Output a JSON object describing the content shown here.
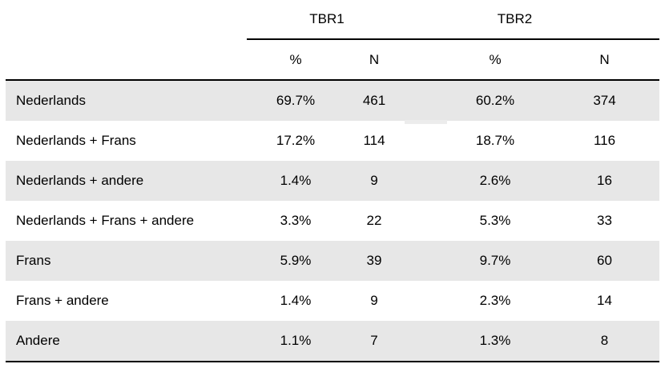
{
  "chart_data": {
    "type": "table",
    "title": "",
    "column_groups": [
      {
        "label": "TBR1",
        "columns": [
          "%",
          "N"
        ]
      },
      {
        "label": "TBR2",
        "columns": [
          "%",
          "N"
        ]
      }
    ],
    "sub_headers": [
      "%",
      "N",
      "%",
      "N"
    ],
    "rows": [
      {
        "label": "Nederlands",
        "tbr1_pct": "69.7%",
        "tbr1_n": "461",
        "tbr2_pct": "60.2%",
        "tbr2_n": "374"
      },
      {
        "label": "Nederlands + Frans",
        "tbr1_pct": "17.2%",
        "tbr1_n": "114",
        "tbr2_pct": "18.7%",
        "tbr2_n": "116"
      },
      {
        "label": "Nederlands + andere",
        "tbr1_pct": "1.4%",
        "tbr1_n": "9",
        "tbr2_pct": "2.6%",
        "tbr2_n": "16"
      },
      {
        "label": "Nederlands + Frans + andere",
        "tbr1_pct": "3.3%",
        "tbr1_n": "22",
        "tbr2_pct": "5.3%",
        "tbr2_n": "33"
      },
      {
        "label": "Frans",
        "tbr1_pct": "5.9%",
        "tbr1_n": "39",
        "tbr2_pct": "9.7%",
        "tbr2_n": "60"
      },
      {
        "label": "Frans + andere",
        "tbr1_pct": "1.4%",
        "tbr1_n": "9",
        "tbr2_pct": "2.3%",
        "tbr2_n": "14"
      },
      {
        "label": "Andere",
        "tbr1_pct": "1.1%",
        "tbr1_n": "7",
        "tbr2_pct": "1.3%",
        "tbr2_n": "8"
      }
    ]
  },
  "colors": {
    "row_shade": "#e7e7e7",
    "rule": "#000000",
    "artifact": "#ececec"
  }
}
